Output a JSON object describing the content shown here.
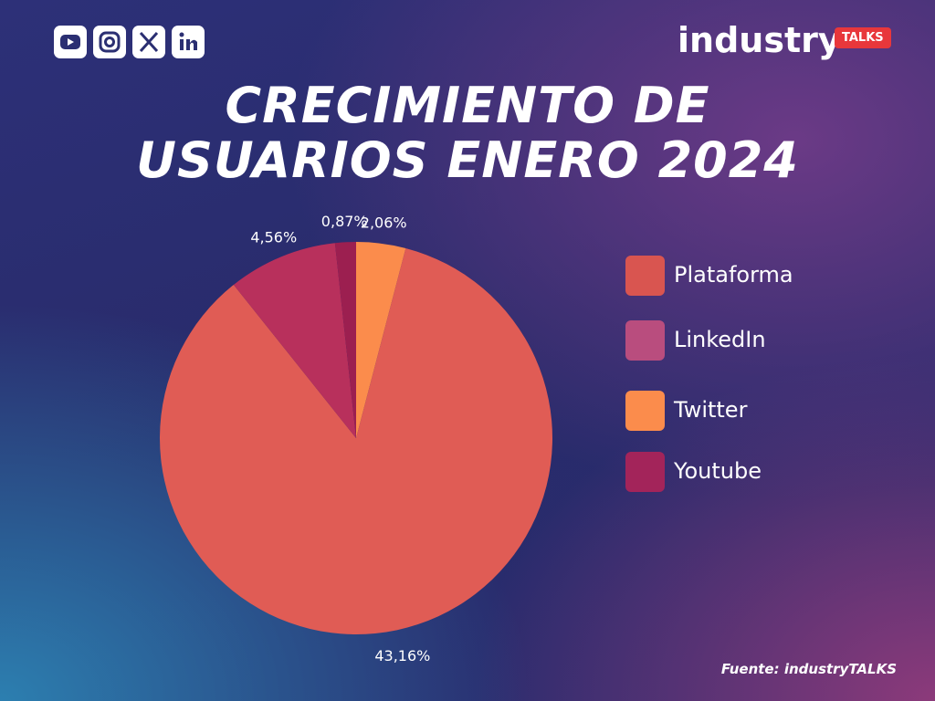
{
  "brand": {
    "name": "industry",
    "badge": "TALKS"
  },
  "chart_data": {
    "type": "pie",
    "title": "CRECIMIENTO DE USUARIOS ENERO 2024",
    "categories": [
      "Twitter",
      "Plataforma",
      "LinkedIn",
      "Youtube"
    ],
    "values": [
      2.06,
      43.16,
      4.56,
      0.87
    ],
    "value_labels": [
      "2,06%",
      "43,16%",
      "4,56%",
      "0,87%"
    ],
    "colors": [
      "#fb8c4c",
      "#e05c55",
      "#b8305c",
      "#9c1f50"
    ],
    "legend": {
      "order": [
        1,
        2,
        0,
        3
      ],
      "colors": [
        "#d95550",
        "#b94d7e",
        "#fb8c4c",
        "#a3245a"
      ]
    }
  },
  "source": "Fuente: industryTALKS"
}
